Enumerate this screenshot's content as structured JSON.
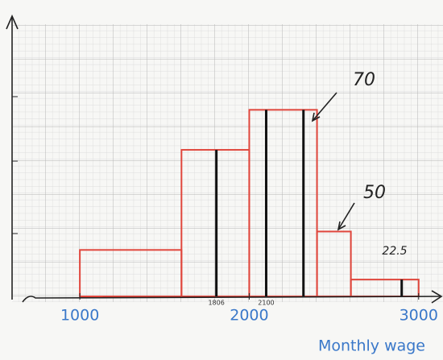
{
  "chart_data": {
    "type": "histogram",
    "x_label": "Monthly wage",
    "bins": [
      1000,
      1600,
      2000,
      2400,
      2600,
      3000
    ],
    "values": [
      5.8,
      18.3,
      23.3,
      8.1,
      2.1
    ],
    "color": "#e0463c",
    "xlim": [
      600,
      3120
    ],
    "xticks": [
      1000,
      2000,
      3000
    ],
    "ylim": [
      0,
      34
    ],
    "labeled_markers": [
      1806,
      2100
    ],
    "unlabeled_markers": [
      2320,
      2900
    ],
    "annotations": [
      "70",
      "50",
      "22.5"
    ],
    "grid": true
  }
}
